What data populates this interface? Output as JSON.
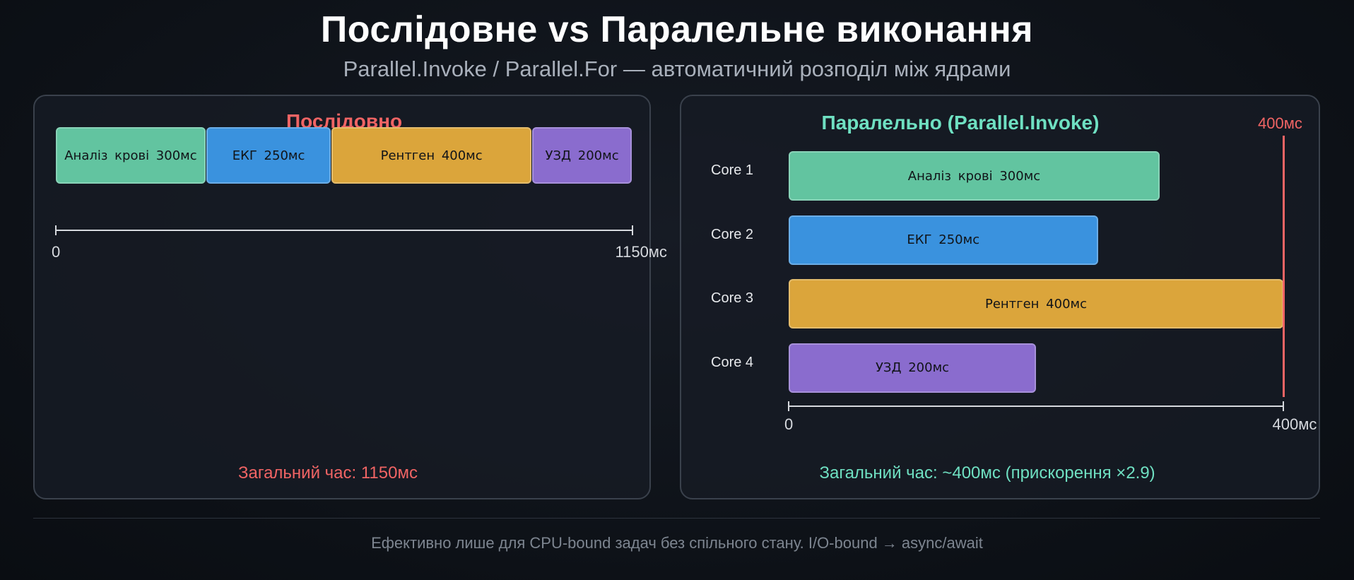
{
  "title": "Послідовне vs Паралельне виконання",
  "subtitle": "Parallel.Invoke / Parallel.For — автоматичний розподіл між ядрами",
  "sequential": {
    "title": "Послідовно",
    "tasks": [
      {
        "label": "Аналіз крові 300мс",
        "duration": 300,
        "color": "#62c4a0"
      },
      {
        "label": "ЕКГ 250мс",
        "duration": 250,
        "color": "#3a92de"
      },
      {
        "label": "Рентген 400мс",
        "duration": 400,
        "color": "#dba53b"
      },
      {
        "label": "УЗД 200мс",
        "duration": 200,
        "color": "#8a6cce"
      }
    ],
    "axis": {
      "min": 0,
      "max": 1150,
      "min_label": "0",
      "max_label": "1150мс"
    },
    "total": "Загальний час: 1150мс",
    "accent": "#f06464"
  },
  "parallel": {
    "title": "Паралельно (Parallel.Invoke)",
    "limit_label": "400мс",
    "limit_value": 400,
    "cores": [
      {
        "core": "Core 1",
        "label": "Аналіз крові 300мс",
        "duration": 300,
        "color": "#62c4a0"
      },
      {
        "core": "Core 2",
        "label": "ЕКГ 250мс",
        "duration": 250,
        "color": "#3a92de"
      },
      {
        "core": "Core 3",
        "label": "Рентген 400мс",
        "duration": 400,
        "color": "#dba53b"
      },
      {
        "core": "Core 4",
        "label": "УЗД 200мс",
        "duration": 200,
        "color": "#8a6cce"
      }
    ],
    "axis": {
      "min": 0,
      "max": 400,
      "min_label": "0",
      "max_label": "400мс"
    },
    "total": "Загальний час: ~400мс (прискорення ×2.9)",
    "accent": "#6fe0c2"
  },
  "footer": "Ефективно лише для CPU-bound задач без спільного стану. I/O-bound → async/await"
}
